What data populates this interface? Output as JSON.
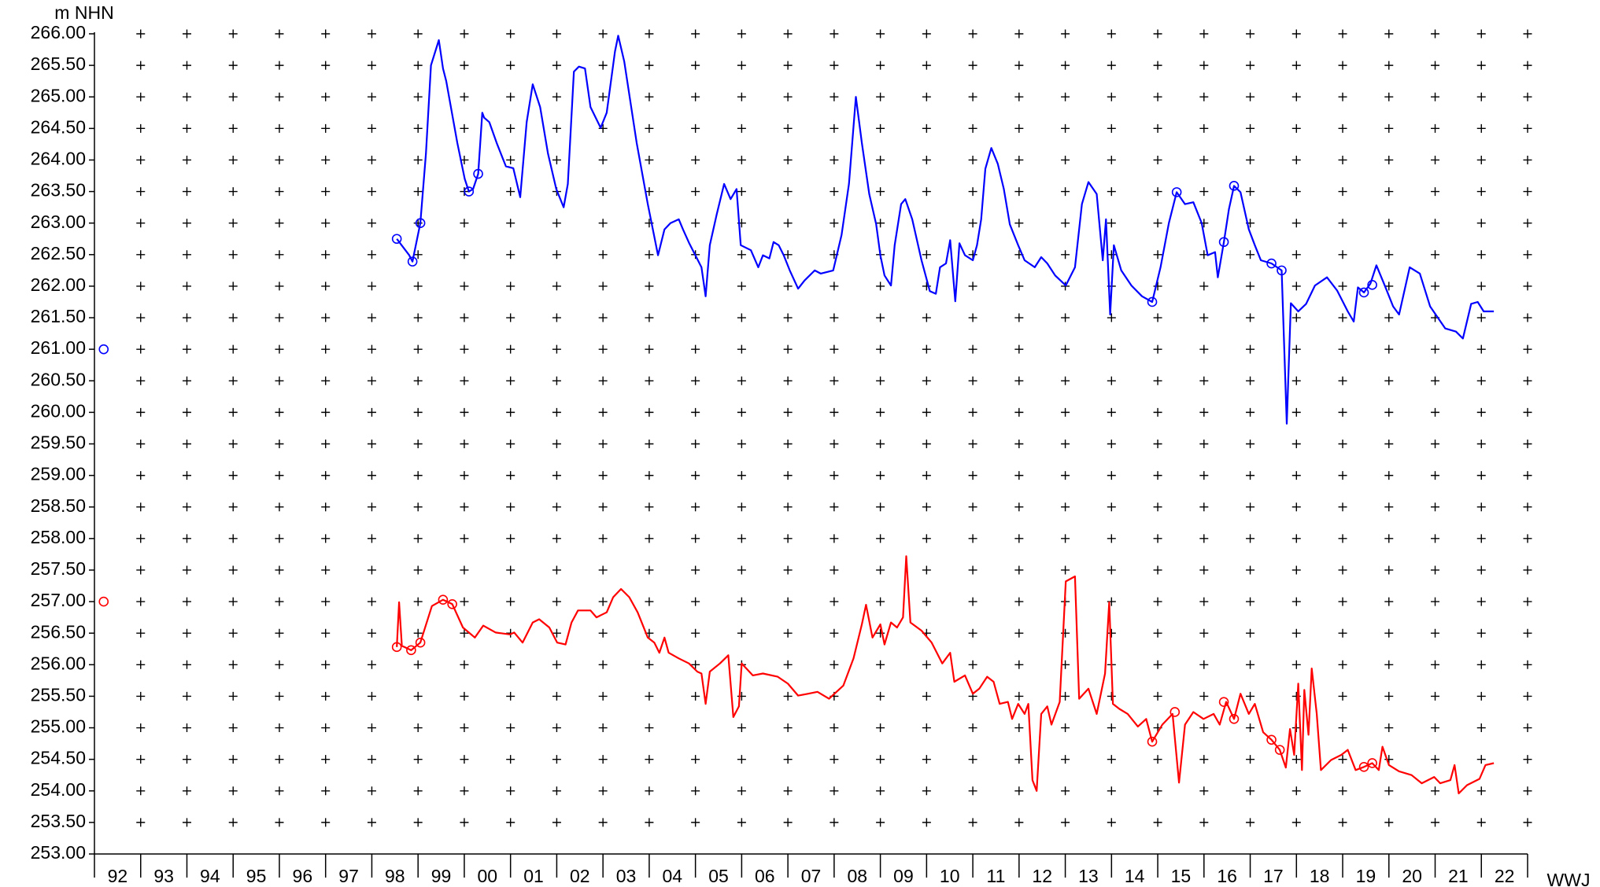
{
  "chart_data": {
    "type": "line",
    "y_label": "m NHN",
    "x_label": "WWJ",
    "xlim": [
      1992,
      2023
    ],
    "ylim": [
      253,
      266
    ],
    "xticks": [
      {
        "value": 1992.5,
        "label": "92"
      },
      {
        "value": 1993.5,
        "label": "93"
      },
      {
        "value": 1994.5,
        "label": "94"
      },
      {
        "value": 1995.5,
        "label": "95"
      },
      {
        "value": 1996.5,
        "label": "96"
      },
      {
        "value": 1997.5,
        "label": "97"
      },
      {
        "value": 1998.5,
        "label": "98"
      },
      {
        "value": 1999.5,
        "label": "99"
      },
      {
        "value": 2000.5,
        "label": "00"
      },
      {
        "value": 2001.5,
        "label": "01"
      },
      {
        "value": 2002.5,
        "label": "02"
      },
      {
        "value": 2003.5,
        "label": "03"
      },
      {
        "value": 2004.5,
        "label": "04"
      },
      {
        "value": 2005.5,
        "label": "05"
      },
      {
        "value": 2006.5,
        "label": "06"
      },
      {
        "value": 2007.5,
        "label": "07"
      },
      {
        "value": 2008.5,
        "label": "08"
      },
      {
        "value": 2009.5,
        "label": "09"
      },
      {
        "value": 2010.5,
        "label": "10"
      },
      {
        "value": 2011.5,
        "label": "11"
      },
      {
        "value": 2012.5,
        "label": "12"
      },
      {
        "value": 2013.5,
        "label": "13"
      },
      {
        "value": 2014.5,
        "label": "14"
      },
      {
        "value": 2015.5,
        "label": "15"
      },
      {
        "value": 2016.5,
        "label": "16"
      },
      {
        "value": 2017.5,
        "label": "17"
      },
      {
        "value": 2018.5,
        "label": "18"
      },
      {
        "value": 2019.5,
        "label": "19"
      },
      {
        "value": 2020.5,
        "label": "20"
      },
      {
        "value": 2021.5,
        "label": "21"
      },
      {
        "value": 2022.5,
        "label": "22"
      }
    ],
    "yticks": [
      {
        "value": 253,
        "label": "253.00"
      },
      {
        "value": 253.5,
        "label": "253.50"
      },
      {
        "value": 254,
        "label": "254.00"
      },
      {
        "value": 254.5,
        "label": "254.50"
      },
      {
        "value": 255,
        "label": "255.00"
      },
      {
        "value": 255.5,
        "label": "255.50"
      },
      {
        "value": 256,
        "label": "256.00"
      },
      {
        "value": 256.5,
        "label": "256.50"
      },
      {
        "value": 257,
        "label": "257.00"
      },
      {
        "value": 257.5,
        "label": "257.50"
      },
      {
        "value": 258,
        "label": "258.00"
      },
      {
        "value": 258.5,
        "label": "258.50"
      },
      {
        "value": 259,
        "label": "259.00"
      },
      {
        "value": 259.5,
        "label": "259.50"
      },
      {
        "value": 260,
        "label": "260.00"
      },
      {
        "value": 260.5,
        "label": "260.50"
      },
      {
        "value": 261,
        "label": "261.00"
      },
      {
        "value": 261.5,
        "label": "261.50"
      },
      {
        "value": 262,
        "label": "262.00"
      },
      {
        "value": 262.5,
        "label": "262.50"
      },
      {
        "value": 263,
        "label": "263.00"
      },
      {
        "value": 263.5,
        "label": "263.50"
      },
      {
        "value": 264,
        "label": "264.00"
      },
      {
        "value": 264.5,
        "label": "264.50"
      },
      {
        "value": 265,
        "label": "265.00"
      },
      {
        "value": 265.5,
        "label": "265.50"
      },
      {
        "value": 266,
        "label": "266.00"
      }
    ],
    "grid": "plus",
    "series": [
      {
        "color": "#0000ff",
        "x": [
          1998.54,
          1998.81,
          1998.88,
          1999.05,
          1999.17,
          1999.28,
          1999.45,
          1999.54,
          1999.61,
          1999.85,
          2000.01,
          2000.1,
          2000.19,
          2000.3,
          2000.39,
          2000.43,
          2000.54,
          2000.7,
          2000.9,
          2001.06,
          2001.21,
          2001.35,
          2001.48,
          2001.64,
          2001.81,
          2001.99,
          2002.15,
          2002.24,
          2002.37,
          2002.48,
          2002.61,
          2002.73,
          2002.95,
          2003.08,
          2003.26,
          2003.33,
          2003.46,
          2003.73,
          2003.97,
          2004.19,
          2004.33,
          2004.46,
          2004.64,
          2004.73,
          2004.86,
          2005.13,
          2005.22,
          2005.31,
          2005.46,
          2005.62,
          2005.76,
          2005.89,
          2005.98,
          2006.2,
          2006.36,
          2006.46,
          2006.6,
          2006.69,
          2006.8,
          2006.91,
          2007.04,
          2007.22,
          2007.36,
          2007.58,
          2007.71,
          2007.98,
          2008.16,
          2008.32,
          2008.47,
          2008.6,
          2008.76,
          2008.91,
          2009.0,
          2009.09,
          2009.23,
          2009.31,
          2009.45,
          2009.54,
          2009.69,
          2009.89,
          2010.07,
          2010.2,
          2010.29,
          2010.42,
          2010.51,
          2010.62,
          2010.71,
          2010.83,
          2011.0,
          2011.09,
          2011.18,
          2011.27,
          2011.4,
          2011.54,
          2011.67,
          2011.8,
          2011.98,
          2012.12,
          2012.34,
          2012.48,
          2012.61,
          2012.78,
          2013.01,
          2013.21,
          2013.36,
          2013.5,
          2013.68,
          2013.81,
          2013.88,
          2013.97,
          2014.05,
          2014.21,
          2014.43,
          2014.66,
          2014.88,
          2015.06,
          2015.24,
          2015.41,
          2015.59,
          2015.77,
          2015.95,
          2016.08,
          2016.24,
          2016.3,
          2016.43,
          2016.54,
          2016.65,
          2016.79,
          2016.97,
          2017.1,
          2017.23,
          2017.46,
          2017.68,
          2017.79,
          2017.88,
          2018.04,
          2018.21,
          2018.4,
          2018.66,
          2018.88,
          2019.11,
          2019.24,
          2019.33,
          2019.46,
          2019.6,
          2019.73,
          2019.91,
          2020.09,
          2020.22,
          2020.45,
          2020.67,
          2020.89,
          2021.22,
          2021.45,
          2021.6,
          2021.78,
          2021.92,
          2022.05,
          2022.27
        ],
        "values": [
          262.75,
          262.49,
          262.39,
          263.0,
          264.1,
          265.5,
          265.9,
          265.45,
          265.25,
          264.27,
          263.7,
          263.5,
          263.54,
          263.78,
          264.75,
          264.67,
          264.6,
          264.27,
          263.9,
          263.87,
          263.41,
          264.6,
          265.2,
          264.84,
          264.1,
          263.54,
          263.25,
          263.62,
          265.4,
          265.48,
          265.45,
          264.84,
          264.51,
          264.75,
          265.72,
          265.97,
          265.56,
          264.27,
          263.3,
          262.49,
          262.9,
          263.0,
          263.06,
          262.9,
          262.69,
          262.3,
          261.84,
          262.65,
          263.14,
          263.62,
          263.38,
          263.54,
          262.65,
          262.57,
          262.3,
          262.49,
          262.44,
          262.7,
          262.65,
          262.49,
          262.25,
          261.96,
          262.09,
          262.25,
          262.2,
          262.25,
          262.81,
          263.62,
          265.0,
          264.27,
          263.46,
          262.98,
          262.49,
          262.17,
          262.01,
          262.65,
          263.3,
          263.38,
          263.06,
          262.41,
          261.92,
          261.88,
          262.3,
          262.36,
          262.73,
          261.76,
          262.68,
          262.49,
          262.41,
          262.65,
          263.06,
          263.86,
          264.19,
          263.94,
          263.54,
          262.98,
          262.65,
          262.41,
          262.3,
          262.46,
          262.36,
          262.17,
          262.01,
          262.3,
          263.3,
          263.65,
          263.46,
          262.41,
          263.06,
          261.55,
          262.65,
          262.25,
          262.01,
          261.84,
          261.75,
          262.3,
          263.0,
          263.49,
          263.3,
          263.33,
          263.0,
          262.49,
          262.54,
          262.14,
          262.7,
          263.22,
          263.59,
          263.49,
          262.9,
          262.65,
          262.41,
          262.36,
          262.25,
          259.82,
          261.73,
          261.6,
          261.72,
          262.01,
          262.14,
          261.93,
          261.6,
          261.44,
          261.98,
          261.9,
          262.04,
          262.33,
          262.01,
          261.68,
          261.55,
          262.3,
          262.2,
          261.68,
          261.33,
          261.28,
          261.17,
          261.72,
          261.75,
          261.6,
          261.6
        ],
        "marker_x": [
          1992.2,
          1998.54,
          1998.88,
          1999.05,
          2000.1,
          2000.3,
          2014.88,
          2015.41,
          2016.43,
          2016.65,
          2017.46,
          2017.68,
          2019.46,
          2019.64
        ],
        "marker_values": [
          261.0,
          262.75,
          262.39,
          263.0,
          263.5,
          263.78,
          261.75,
          263.49,
          262.7,
          263.59,
          262.36,
          262.25,
          261.9,
          262.02
        ]
      },
      {
        "color": "#ff0000",
        "x": [
          1998.54,
          1998.59,
          1998.65,
          1998.85,
          1999.05,
          1999.3,
          1999.54,
          1999.74,
          1999.97,
          2000.23,
          2000.41,
          2000.68,
          2000.99,
          2001.08,
          2001.26,
          2001.48,
          2001.62,
          2001.84,
          2002.01,
          2002.19,
          2002.32,
          2002.46,
          2002.73,
          2002.86,
          2003.08,
          2003.22,
          2003.39,
          2003.57,
          2003.75,
          2003.97,
          2004.11,
          2004.22,
          2004.33,
          2004.42,
          2004.64,
          2004.86,
          2005.04,
          2005.13,
          2005.22,
          2005.31,
          2005.53,
          2005.71,
          2005.82,
          2005.94,
          2006.0,
          2006.24,
          2006.46,
          2006.78,
          2007.0,
          2007.22,
          2007.44,
          2007.64,
          2007.89,
          2008.2,
          2008.42,
          2008.6,
          2008.69,
          2008.83,
          2009.0,
          2009.09,
          2009.23,
          2009.36,
          2009.49,
          2009.56,
          2009.65,
          2009.89,
          2010.11,
          2010.34,
          2010.51,
          2010.6,
          2010.83,
          2011.0,
          2011.14,
          2011.31,
          2011.45,
          2011.58,
          2011.76,
          2011.85,
          2011.98,
          2012.12,
          2012.2,
          2012.29,
          2012.38,
          2012.48,
          2012.61,
          2012.7,
          2012.88,
          2013.01,
          2013.21,
          2013.3,
          2013.5,
          2013.68,
          2013.86,
          2013.95,
          2014.03,
          2014.17,
          2014.35,
          2014.57,
          2014.75,
          2014.88,
          2015.1,
          2015.32,
          2015.46,
          2015.59,
          2015.77,
          2015.99,
          2016.21,
          2016.34,
          2016.48,
          2016.65,
          2016.79,
          2016.97,
          2017.1,
          2017.28,
          2017.46,
          2017.64,
          2017.77,
          2017.86,
          2017.95,
          2018.04,
          2018.12,
          2018.17,
          2018.26,
          2018.33,
          2018.44,
          2018.53,
          2018.75,
          2018.97,
          2019.11,
          2019.28,
          2019.46,
          2019.64,
          2019.78,
          2019.86,
          2020.0,
          2020.22,
          2020.49,
          2020.71,
          2020.98,
          2021.11,
          2021.33,
          2021.42,
          2021.51,
          2021.69,
          2021.96,
          2022.09,
          2022.27
        ],
        "values": [
          256.28,
          256.99,
          256.3,
          256.23,
          256.35,
          256.93,
          257.03,
          256.96,
          256.59,
          256.43,
          256.62,
          256.51,
          256.48,
          256.51,
          256.35,
          256.67,
          256.72,
          256.59,
          256.35,
          256.32,
          256.67,
          256.86,
          256.86,
          256.75,
          256.83,
          257.07,
          257.2,
          257.07,
          256.83,
          256.43,
          256.35,
          256.19,
          256.43,
          256.19,
          256.1,
          256.02,
          255.89,
          255.86,
          255.38,
          255.89,
          256.02,
          256.15,
          255.17,
          255.34,
          256.02,
          255.83,
          255.86,
          255.81,
          255.7,
          255.51,
          255.54,
          255.57,
          255.46,
          255.67,
          256.1,
          256.64,
          256.95,
          256.43,
          256.64,
          256.32,
          256.67,
          256.59,
          256.75,
          257.72,
          256.67,
          256.54,
          256.35,
          256.02,
          256.19,
          255.73,
          255.83,
          255.54,
          255.62,
          255.81,
          255.73,
          255.38,
          255.41,
          255.14,
          255.38,
          255.22,
          255.38,
          254.17,
          254.0,
          255.22,
          255.34,
          255.05,
          255.41,
          257.32,
          257.4,
          255.46,
          255.62,
          255.22,
          255.86,
          256.99,
          255.38,
          255.3,
          255.22,
          255.02,
          255.14,
          254.78,
          255.05,
          255.22,
          254.13,
          255.05,
          255.25,
          255.14,
          255.22,
          255.05,
          255.41,
          255.14,
          255.54,
          255.22,
          255.38,
          254.93,
          254.81,
          254.65,
          254.37,
          254.98,
          254.57,
          255.7,
          254.33,
          255.6,
          254.89,
          255.94,
          255.22,
          254.33,
          254.49,
          254.57,
          254.65,
          254.33,
          254.38,
          254.44,
          254.33,
          254.7,
          254.41,
          254.31,
          254.25,
          254.12,
          254.22,
          254.12,
          254.17,
          254.41,
          253.96,
          254.09,
          254.19,
          254.41,
          254.44
        ],
        "marker_x": [
          1992.2,
          1998.54,
          1998.85,
          1999.05,
          1999.54,
          1999.74,
          2014.88,
          2015.37,
          2016.43,
          2016.65,
          2017.46,
          2017.64,
          2019.46,
          2019.64
        ],
        "marker_values": [
          257.0,
          256.28,
          256.23,
          256.35,
          257.03,
          256.96,
          254.78,
          255.25,
          255.41,
          255.14,
          254.81,
          254.65,
          254.38,
          254.44
        ]
      }
    ]
  }
}
